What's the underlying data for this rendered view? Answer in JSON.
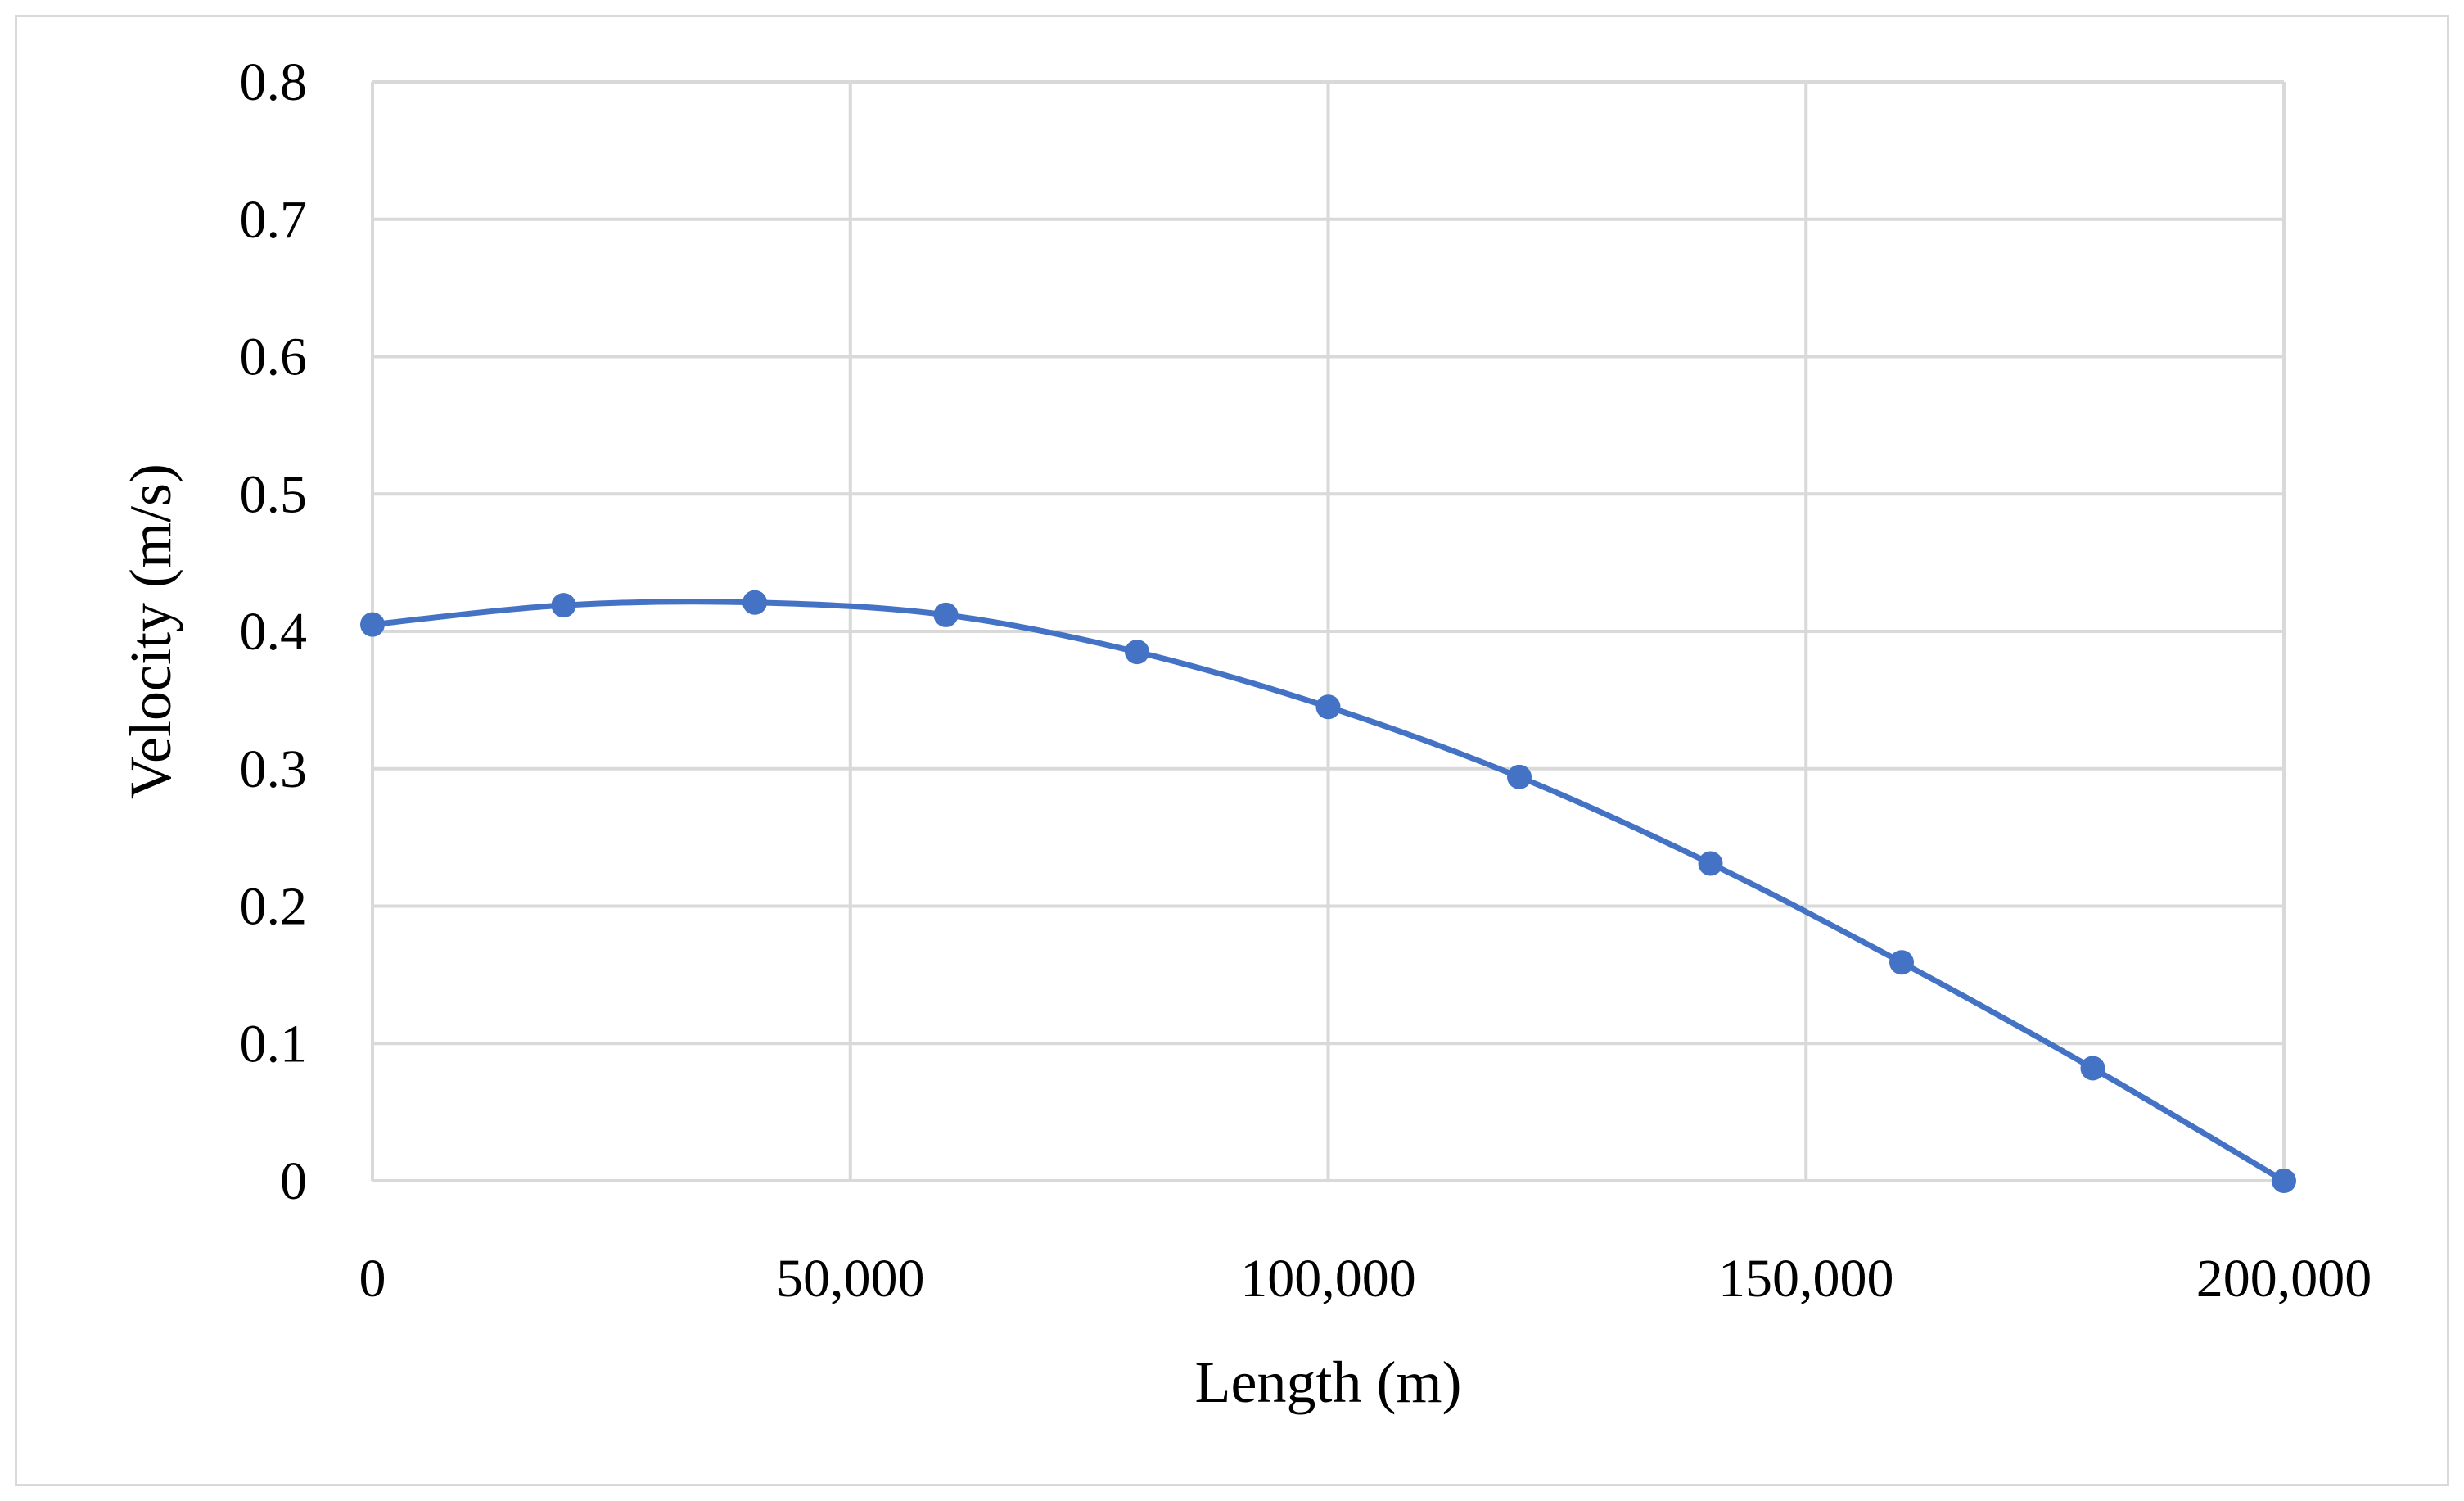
{
  "colors": {
    "series": "#4472c4",
    "grid": "#d9d9d9",
    "frame": "#d9d9d9"
  },
  "chart_data": {
    "type": "scatter",
    "title": "",
    "xlabel": "Length (m)",
    "ylabel": "Velocity (m/s)",
    "xlim": [
      0,
      200000
    ],
    "ylim": [
      0,
      0.8
    ],
    "x_ticks": [
      0,
      50000,
      100000,
      150000,
      200000
    ],
    "x_tick_labels": [
      "0",
      "50,000",
      "100,000",
      "150,000",
      "200,000"
    ],
    "y_ticks": [
      0,
      0.1,
      0.2,
      0.3,
      0.4,
      0.5,
      0.6,
      0.7,
      0.8
    ],
    "y_tick_labels": [
      "0",
      "0.1",
      "0.2",
      "0.3",
      "0.4",
      "0.5",
      "0.6",
      "0.7",
      "0.8"
    ],
    "grid": true,
    "legend": "none",
    "smoothed": true,
    "markers": true,
    "series": [
      {
        "x": [
          0,
          20000,
          40000,
          60000,
          80000,
          100000,
          120000,
          140000,
          160000,
          180000,
          200000
        ],
        "y": [
          0.405,
          0.419,
          0.421,
          0.412,
          0.385,
          0.345,
          0.294,
          0.231,
          0.159,
          0.082,
          0.0
        ]
      }
    ]
  }
}
